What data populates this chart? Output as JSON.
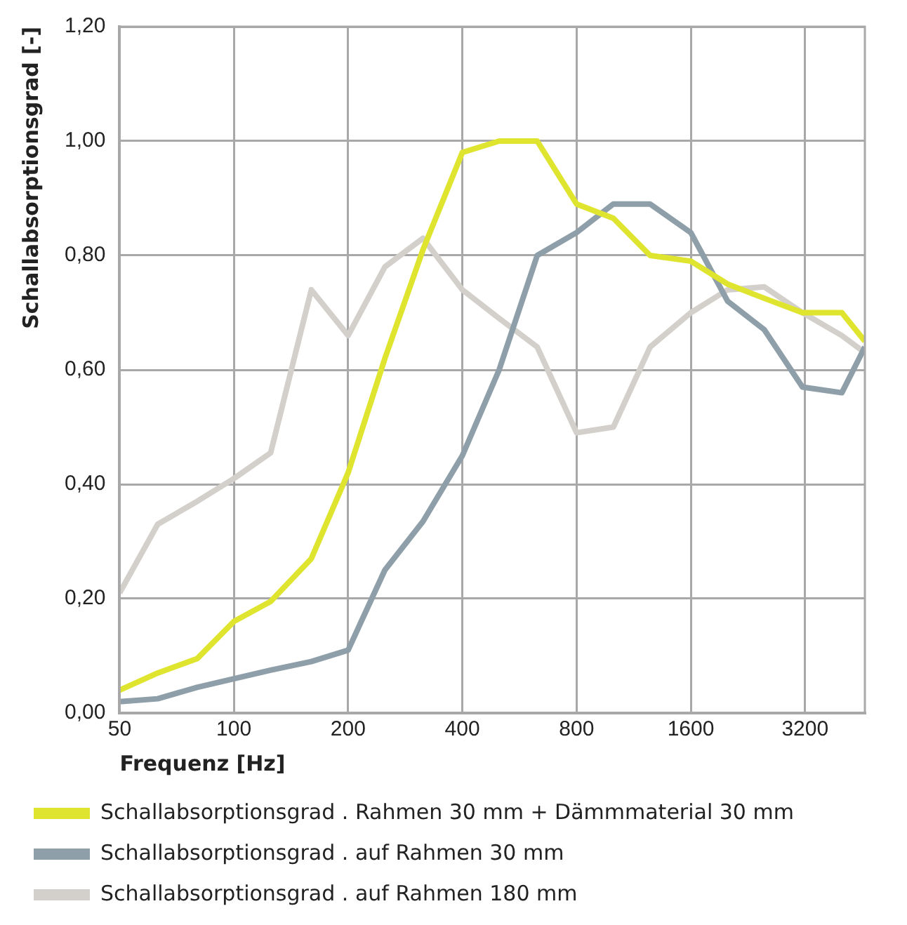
{
  "chart_data": {
    "type": "line",
    "xlabel": "Frequenz [Hz]",
    "ylabel": "Schallabsorptionsgrad [-]",
    "x": [
      50,
      63,
      80,
      100,
      125,
      160,
      200,
      250,
      315,
      400,
      500,
      630,
      800,
      1000,
      1250,
      1600,
      2000,
      2500,
      3150,
      4000,
      4600
    ],
    "log": "x",
    "xlim": [
      50,
      4600
    ],
    "xticks": [
      50,
      100,
      200,
      400,
      800,
      1600,
      3200
    ],
    "ylim": [
      0,
      1.2
    ],
    "yticks": [
      {
        "value": 0,
        "label": "0,00"
      },
      {
        "value": 0.2,
        "label": "0,20"
      },
      {
        "value": 0.4,
        "label": "0,40"
      },
      {
        "value": 0.6,
        "label": "0,60"
      },
      {
        "value": 0.8,
        "label": "0,80"
      },
      {
        "value": 1,
        "label": "1,00"
      },
      {
        "value": 1.2,
        "label": "1,20"
      }
    ],
    "grid": true,
    "legend": "bottom",
    "marker": "none",
    "line_style": "solid",
    "series": [
      {
        "name": "Schallabsorptionsgrad . Rahmen 30 mm + Dämmmaterial 30 mm",
        "color": "#dfe52f",
        "values": [
          0.04,
          0.07,
          0.095,
          0.16,
          0.195,
          0.27,
          0.42,
          0.62,
          0.81,
          0.98,
          1.0,
          1.0,
          0.89,
          0.865,
          0.8,
          0.79,
          0.75,
          0.725,
          0.7,
          0.7,
          0.65
        ]
      },
      {
        "name": "Schallabsorptionsgrad . auf Rahmen 30 mm",
        "color": "#8e9fa9",
        "values": [
          0.02,
          0.025,
          0.045,
          0.06,
          0.075,
          0.09,
          0.11,
          0.25,
          0.335,
          0.45,
          0.6,
          0.8,
          0.84,
          0.89,
          0.89,
          0.84,
          0.72,
          0.67,
          0.57,
          0.56,
          0.64
        ]
      },
      {
        "name": "Schallabsorptionsgrad . auf Rahmen 180 mm",
        "color": "#d3d0cb",
        "values": [
          0.21,
          0.33,
          0.37,
          0.41,
          0.455,
          0.74,
          0.66,
          0.78,
          0.83,
          0.74,
          0.69,
          0.64,
          0.49,
          0.5,
          0.64,
          0.7,
          0.74,
          0.745,
          0.7,
          0.66,
          0.63
        ]
      }
    ]
  }
}
